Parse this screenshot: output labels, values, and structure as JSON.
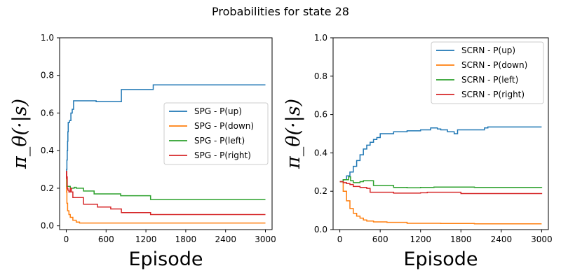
{
  "figure": {
    "suptitle": "Probabilities for state 28"
  },
  "chart_data": [
    {
      "type": "line",
      "title": "",
      "xlabel": "Episode",
      "ylabel": "π_θ(·|s)",
      "xlim": [
        -100,
        3100
      ],
      "ylim": [
        -0.02,
        1.0
      ],
      "xticks": [
        0,
        600,
        1200,
        1800,
        2400,
        3000
      ],
      "xtick_labels": [
        "0",
        "600",
        "1200",
        "1800",
        "2400",
        "3000"
      ],
      "yticks": [
        0.0,
        0.2,
        0.4,
        0.6,
        0.8,
        1.0
      ],
      "ytick_labels": [
        "0.0",
        "0.2",
        "0.4",
        "0.6",
        "0.8",
        "1.0"
      ],
      "grid": false,
      "legend_position": "center-right",
      "step": true,
      "series": [
        {
          "name": "SPG - P(up)",
          "color": "#1f77b4",
          "points": [
            [
              0,
              0.25
            ],
            [
              5,
              0.3
            ],
            [
              10,
              0.35
            ],
            [
              15,
              0.4
            ],
            [
              20,
              0.45
            ],
            [
              25,
              0.5
            ],
            [
              30,
              0.55
            ],
            [
              50,
              0.56
            ],
            [
              70,
              0.6
            ],
            [
              90,
              0.62
            ],
            [
              110,
              0.665
            ],
            [
              300,
              0.665
            ],
            [
              450,
              0.66
            ],
            [
              700,
              0.66
            ],
            [
              820,
              0.66
            ],
            [
              830,
              0.725
            ],
            [
              1000,
              0.725
            ],
            [
              1300,
              0.725
            ],
            [
              1310,
              0.75
            ],
            [
              3000,
              0.75
            ]
          ]
        },
        {
          "name": "SPG - P(down)",
          "color": "#ff7f0e",
          "points": [
            [
              0,
              0.25
            ],
            [
              5,
              0.18
            ],
            [
              10,
              0.12
            ],
            [
              20,
              0.08
            ],
            [
              40,
              0.06
            ],
            [
              60,
              0.045
            ],
            [
              100,
              0.03
            ],
            [
              150,
              0.02
            ],
            [
              200,
              0.015
            ],
            [
              3000,
              0.015
            ]
          ]
        },
        {
          "name": "SPG - P(left)",
          "color": "#2ca02c",
          "points": [
            [
              0,
              0.25
            ],
            [
              10,
              0.21
            ],
            [
              40,
              0.21
            ],
            [
              60,
              0.2
            ],
            [
              100,
              0.2
            ],
            [
              120,
              0.205
            ],
            [
              150,
              0.2
            ],
            [
              250,
              0.2
            ],
            [
              260,
              0.185
            ],
            [
              400,
              0.185
            ],
            [
              420,
              0.17
            ],
            [
              800,
              0.17
            ],
            [
              820,
              0.16
            ],
            [
              1250,
              0.16
            ],
            [
              1270,
              0.14
            ],
            [
              3000,
              0.14
            ]
          ]
        },
        {
          "name": "SPG - P(right)",
          "color": "#d62728",
          "points": [
            [
              0,
              0.25
            ],
            [
              3,
              0.29
            ],
            [
              8,
              0.26
            ],
            [
              15,
              0.2
            ],
            [
              25,
              0.19
            ],
            [
              40,
              0.18
            ],
            [
              60,
              0.2
            ],
            [
              80,
              0.18
            ],
            [
              100,
              0.15
            ],
            [
              250,
              0.15
            ],
            [
              260,
              0.115
            ],
            [
              450,
              0.115
            ],
            [
              470,
              0.1
            ],
            [
              650,
              0.1
            ],
            [
              670,
              0.09
            ],
            [
              820,
              0.09
            ],
            [
              830,
              0.07
            ],
            [
              1250,
              0.07
            ],
            [
              1270,
              0.06
            ],
            [
              3000,
              0.06
            ]
          ]
        }
      ]
    },
    {
      "type": "line",
      "title": "",
      "xlabel": "Episode",
      "ylabel": "π_θ(·|s)",
      "xlim": [
        -100,
        3100
      ],
      "ylim": [
        0.0,
        1.0
      ],
      "xticks": [
        0,
        600,
        1200,
        1800,
        2400,
        3000
      ],
      "xtick_labels": [
        "0",
        "600",
        "1200",
        "1800",
        "2400",
        "3000"
      ],
      "yticks": [
        0.0,
        0.2,
        0.4,
        0.6,
        0.8,
        1.0
      ],
      "ytick_labels": [
        "0.0",
        "0.2",
        "0.4",
        "0.6",
        "0.8",
        "1.0"
      ],
      "grid": false,
      "legend_position": "top-right",
      "step": true,
      "series": [
        {
          "name": "SCRN - P(up)",
          "color": "#1f77b4",
          "points": [
            [
              0,
              0.25
            ],
            [
              50,
              0.26
            ],
            [
              100,
              0.28
            ],
            [
              150,
              0.3
            ],
            [
              200,
              0.33
            ],
            [
              250,
              0.36
            ],
            [
              300,
              0.39
            ],
            [
              350,
              0.42
            ],
            [
              400,
              0.44
            ],
            [
              450,
              0.455
            ],
            [
              500,
              0.47
            ],
            [
              550,
              0.48
            ],
            [
              600,
              0.5
            ],
            [
              800,
              0.51
            ],
            [
              1000,
              0.515
            ],
            [
              1200,
              0.52
            ],
            [
              1350,
              0.53
            ],
            [
              1450,
              0.525
            ],
            [
              1500,
              0.52
            ],
            [
              1600,
              0.51
            ],
            [
              1700,
              0.5
            ],
            [
              1750,
              0.52
            ],
            [
              2000,
              0.52
            ],
            [
              2150,
              0.53
            ],
            [
              2200,
              0.535
            ],
            [
              3000,
              0.535
            ]
          ]
        },
        {
          "name": "SCRN - P(down)",
          "color": "#ff7f0e",
          "points": [
            [
              0,
              0.25
            ],
            [
              50,
              0.2
            ],
            [
              100,
              0.15
            ],
            [
              150,
              0.11
            ],
            [
              200,
              0.085
            ],
            [
              250,
              0.07
            ],
            [
              300,
              0.06
            ],
            [
              350,
              0.05
            ],
            [
              400,
              0.045
            ],
            [
              500,
              0.04
            ],
            [
              700,
              0.038
            ],
            [
              1000,
              0.033
            ],
            [
              1500,
              0.032
            ],
            [
              2000,
              0.03
            ],
            [
              3000,
              0.03
            ]
          ]
        },
        {
          "name": "SCRN - P(left)",
          "color": "#2ca02c",
          "points": [
            [
              0,
              0.25
            ],
            [
              50,
              0.26
            ],
            [
              100,
              0.26
            ],
            [
              130,
              0.275
            ],
            [
              160,
              0.255
            ],
            [
              200,
              0.245
            ],
            [
              300,
              0.25
            ],
            [
              350,
              0.255
            ],
            [
              450,
              0.255
            ],
            [
              500,
              0.23
            ],
            [
              600,
              0.23
            ],
            [
              800,
              0.22
            ],
            [
              1000,
              0.218
            ],
            [
              1200,
              0.22
            ],
            [
              1400,
              0.222
            ],
            [
              1800,
              0.222
            ],
            [
              2000,
              0.22
            ],
            [
              3000,
              0.218
            ]
          ]
        },
        {
          "name": "SCRN - P(right)",
          "color": "#d62728",
          "points": [
            [
              0,
              0.25
            ],
            [
              50,
              0.245
            ],
            [
              100,
              0.24
            ],
            [
              150,
              0.235
            ],
            [
              200,
              0.225
            ],
            [
              300,
              0.22
            ],
            [
              400,
              0.215
            ],
            [
              450,
              0.195
            ],
            [
              600,
              0.195
            ],
            [
              800,
              0.19
            ],
            [
              1000,
              0.19
            ],
            [
              1200,
              0.192
            ],
            [
              1300,
              0.195
            ],
            [
              1700,
              0.195
            ],
            [
              1800,
              0.188
            ],
            [
              2000,
              0.188
            ],
            [
              3000,
              0.185
            ]
          ]
        }
      ]
    }
  ]
}
